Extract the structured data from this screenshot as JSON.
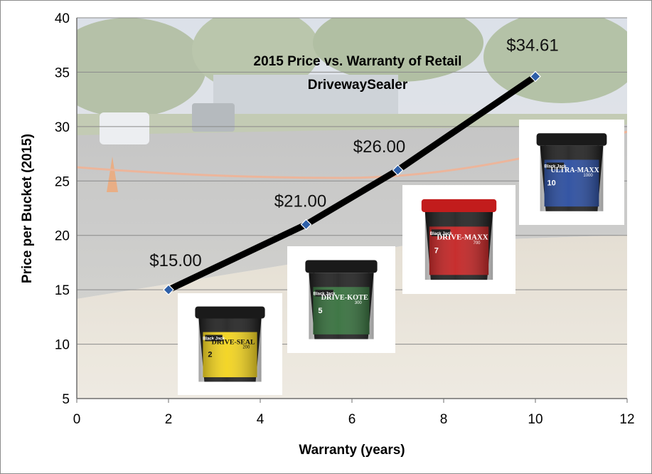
{
  "chart_data": {
    "type": "line",
    "title_lines": [
      "2015 Price vs. Warranty of Retail",
      "DrivewaySealer"
    ],
    "xlabel": "Warranty (years)",
    "ylabel": "Price per Bucket (2015)",
    "xlim": [
      0,
      12
    ],
    "ylim": [
      5,
      40
    ],
    "x_ticks": [
      0,
      2,
      4,
      6,
      8,
      10,
      12
    ],
    "y_ticks": [
      5,
      10,
      15,
      20,
      25,
      30,
      35,
      40
    ],
    "grid": "horizontal",
    "legend": "none",
    "series": [
      {
        "x": [
          2,
          5,
          7,
          10
        ],
        "y": [
          15.0,
          21.0,
          26.0,
          34.61
        ],
        "labels": [
          "$15.00",
          "$21.00",
          "$26.00",
          "$34.61"
        ],
        "color": "#000000",
        "marker_color": "#2e5fa8"
      }
    ],
    "products": [
      {
        "brand": "Black Jack",
        "name": "DRIVE-SEAL",
        "model": "200",
        "years": "2",
        "color": "#f2d216"
      },
      {
        "brand": "Black Jack",
        "name": "DRIVE-KOTE",
        "model": "300",
        "years": "5",
        "color": "#2f6b36"
      },
      {
        "brand": "Black Jack",
        "name": "DRIVE-MAXX",
        "model": "700",
        "years": "7",
        "color": "#c21c1c"
      },
      {
        "brand": "Black Jack",
        "name": "ULTRA-MAXX",
        "model": "1000",
        "years": "10",
        "color": "#23479c"
      }
    ]
  }
}
